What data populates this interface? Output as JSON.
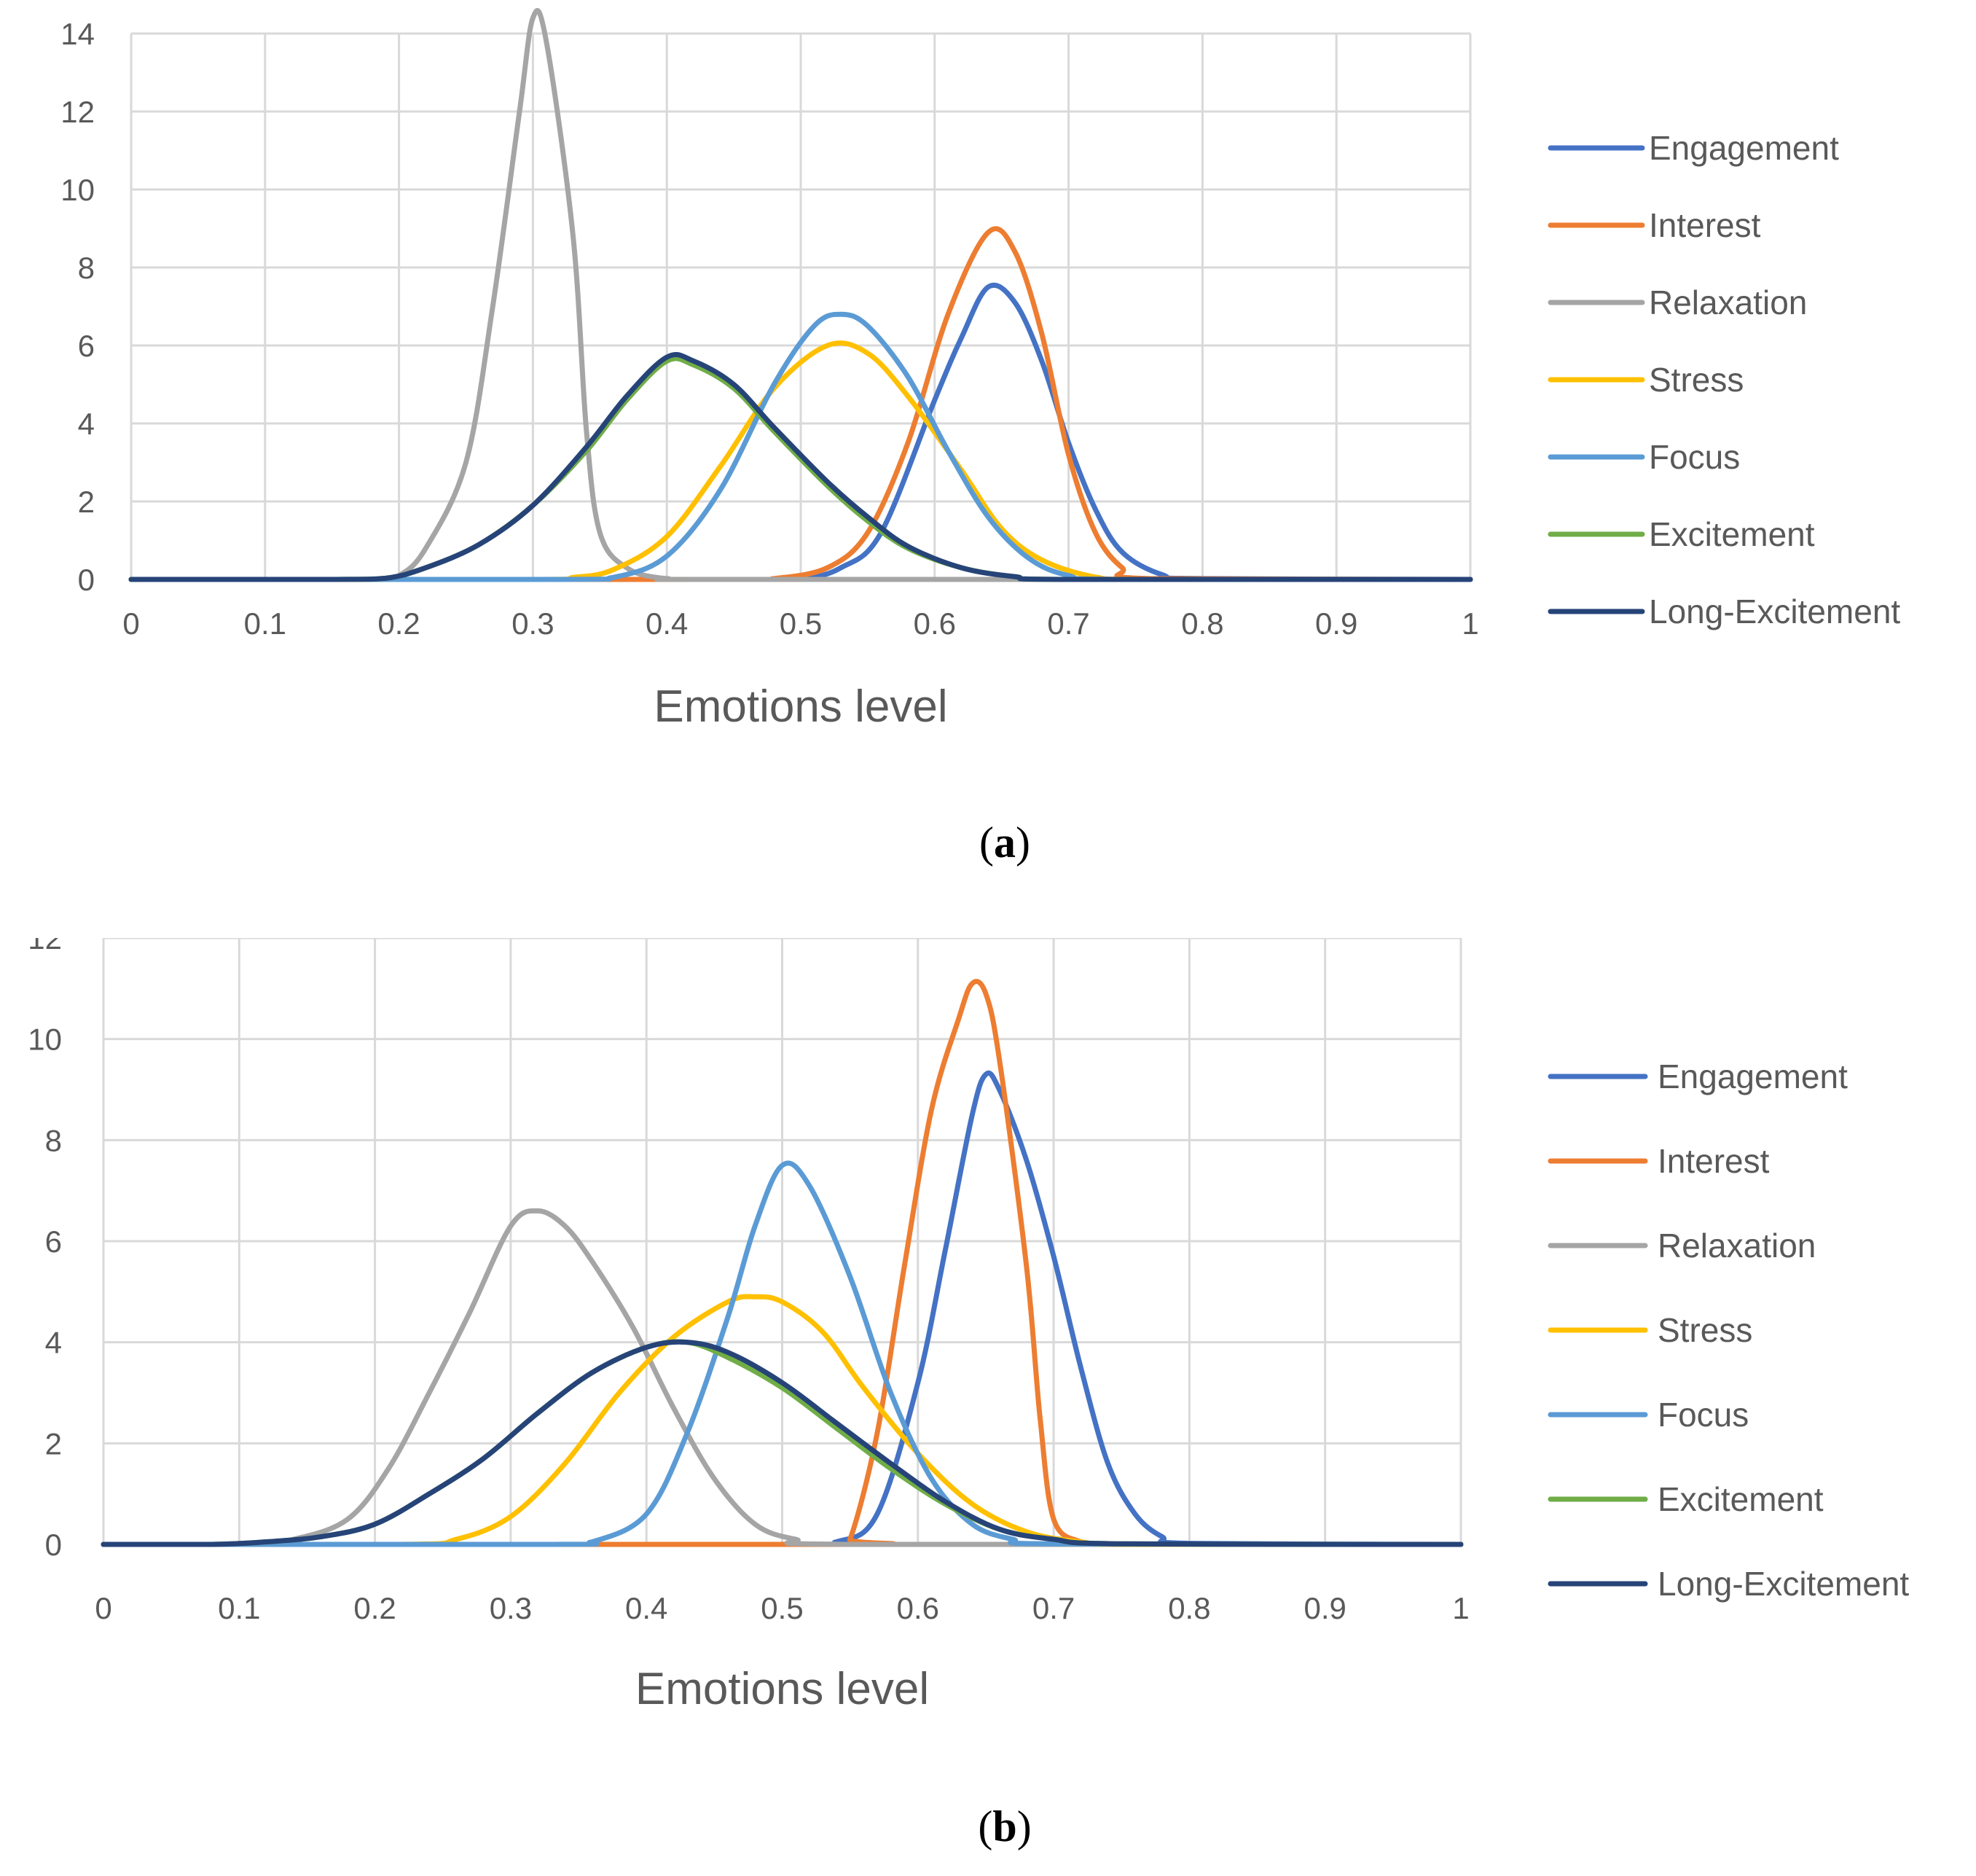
{
  "chart_data": [
    {
      "type": "line",
      "panel_label": "a",
      "title": "",
      "xlabel": "Emotions level",
      "ylabel": "",
      "xlim": [
        0,
        1
      ],
      "ylim": [
        0,
        14
      ],
      "x_ticks": [
        "0",
        "0.1",
        "0.2",
        "0.3",
        "0.4",
        "0.5",
        "0.6",
        "0.7",
        "0.8",
        "0.9",
        "1"
      ],
      "y_ticks": [
        "0",
        "2",
        "4",
        "6",
        "8",
        "10",
        "12",
        "14"
      ],
      "grid": true,
      "legend_position": "right",
      "series": [
        {
          "name": "Engagement",
          "color": "#4472C4",
          "points": [
            [
              0,
              0
            ],
            [
              0.45,
              0
            ],
            [
              0.5,
              0.02
            ],
            [
              0.53,
              0.3
            ],
            [
              0.56,
              1.2
            ],
            [
              0.6,
              4.6
            ],
            [
              0.62,
              6.2
            ],
            [
              0.64,
              7.5
            ],
            [
              0.66,
              7.1
            ],
            [
              0.68,
              5.6
            ],
            [
              0.7,
              3.5
            ],
            [
              0.72,
              1.8
            ],
            [
              0.74,
              0.7
            ],
            [
              0.77,
              0.12
            ],
            [
              0.8,
              0.02
            ],
            [
              1,
              0
            ]
          ]
        },
        {
          "name": "Interest",
          "color": "#ED7D31",
          "points": [
            [
              0,
              0
            ],
            [
              0.45,
              0
            ],
            [
              0.48,
              0.02
            ],
            [
              0.52,
              0.3
            ],
            [
              0.55,
              1.2
            ],
            [
              0.58,
              3.5
            ],
            [
              0.61,
              6.8
            ],
            [
              0.64,
              8.9
            ],
            [
              0.66,
              8.4
            ],
            [
              0.68,
              6.3
            ],
            [
              0.7,
              3.2
            ],
            [
              0.72,
              1.2
            ],
            [
              0.74,
              0.3
            ],
            [
              0.76,
              0.02
            ],
            [
              1,
              0
            ]
          ]
        },
        {
          "name": "Relaxation",
          "color": "#A5A5A5",
          "points": [
            [
              0,
              0
            ],
            [
              0.18,
              0
            ],
            [
              0.2,
              0.1
            ],
            [
              0.22,
              0.8
            ],
            [
              0.25,
              3.0
            ],
            [
              0.27,
              7.0
            ],
            [
              0.29,
              12.0
            ],
            [
              0.3,
              14.4
            ],
            [
              0.31,
              13.8
            ],
            [
              0.33,
              8.8
            ],
            [
              0.34,
              3.8
            ],
            [
              0.35,
              1.2
            ],
            [
              0.37,
              0.3
            ],
            [
              0.4,
              0.02
            ],
            [
              0.45,
              0
            ],
            [
              1,
              0
            ]
          ]
        },
        {
          "name": "Stress",
          "color": "#FFC000",
          "points": [
            [
              0,
              0
            ],
            [
              0.3,
              0
            ],
            [
              0.33,
              0.05
            ],
            [
              0.36,
              0.25
            ],
            [
              0.4,
              1.1
            ],
            [
              0.44,
              2.9
            ],
            [
              0.48,
              4.9
            ],
            [
              0.52,
              6.0
            ],
            [
              0.55,
              5.8
            ],
            [
              0.58,
              4.7
            ],
            [
              0.62,
              2.8
            ],
            [
              0.65,
              1.3
            ],
            [
              0.68,
              0.5
            ],
            [
              0.72,
              0.06
            ],
            [
              0.76,
              0
            ],
            [
              1,
              0
            ]
          ]
        },
        {
          "name": "Focus",
          "color": "#5B9BD5",
          "points": [
            [
              0,
              0
            ],
            [
              0.32,
              0
            ],
            [
              0.36,
              0.05
            ],
            [
              0.4,
              0.6
            ],
            [
              0.44,
              2.3
            ],
            [
              0.48,
              5.0
            ],
            [
              0.51,
              6.5
            ],
            [
              0.53,
              6.8
            ],
            [
              0.55,
              6.5
            ],
            [
              0.58,
              5.2
            ],
            [
              0.61,
              3.3
            ],
            [
              0.64,
              1.6
            ],
            [
              0.67,
              0.55
            ],
            [
              0.7,
              0.1
            ],
            [
              0.74,
              0
            ],
            [
              1,
              0
            ]
          ]
        },
        {
          "name": "Excitement",
          "color": "#70AD47",
          "points": [
            [
              0,
              0
            ],
            [
              0.15,
              0
            ],
            [
              0.19,
              0.03
            ],
            [
              0.22,
              0.3
            ],
            [
              0.26,
              0.9
            ],
            [
              0.3,
              1.9
            ],
            [
              0.34,
              3.3
            ],
            [
              0.37,
              4.6
            ],
            [
              0.4,
              5.6
            ],
            [
              0.42,
              5.5
            ],
            [
              0.45,
              4.9
            ],
            [
              0.48,
              3.8
            ],
            [
              0.52,
              2.4
            ],
            [
              0.55,
              1.5
            ],
            [
              0.58,
              0.8
            ],
            [
              0.62,
              0.3
            ],
            [
              0.66,
              0.07
            ],
            [
              0.7,
              0
            ],
            [
              1,
              0
            ]
          ]
        },
        {
          "name": "Long-Excitement",
          "color": "#264478",
          "points": [
            [
              0,
              0
            ],
            [
              0.15,
              0
            ],
            [
              0.19,
              0.03
            ],
            [
              0.22,
              0.3
            ],
            [
              0.26,
              0.9
            ],
            [
              0.3,
              1.9
            ],
            [
              0.34,
              3.4
            ],
            [
              0.37,
              4.7
            ],
            [
              0.4,
              5.7
            ],
            [
              0.42,
              5.6
            ],
            [
              0.45,
              5.0
            ],
            [
              0.48,
              3.9
            ],
            [
              0.52,
              2.5
            ],
            [
              0.55,
              1.6
            ],
            [
              0.58,
              0.85
            ],
            [
              0.62,
              0.3
            ],
            [
              0.66,
              0.07
            ],
            [
              0.7,
              0
            ],
            [
              1,
              0
            ]
          ]
        }
      ]
    },
    {
      "type": "line",
      "panel_label": "b",
      "title": "",
      "xlabel": "Emotions level",
      "ylabel": "",
      "xlim": [
        0,
        1
      ],
      "ylim": [
        0,
        12
      ],
      "x_ticks": [
        "0",
        "0.1",
        "0.2",
        "0.3",
        "0.4",
        "0.5",
        "0.6",
        "0.7",
        "0.8",
        "0.9",
        "1"
      ],
      "y_ticks": [
        "0",
        "2",
        "4",
        "6",
        "8",
        "10",
        "12"
      ],
      "grid": true,
      "legend_position": "right",
      "series": [
        {
          "name": "Engagement",
          "color": "#4472C4",
          "points": [
            [
              0,
              0
            ],
            [
              0.5,
              0
            ],
            [
              0.54,
              0.05
            ],
            [
              0.57,
              0.6
            ],
            [
              0.6,
              3.2
            ],
            [
              0.62,
              5.8
            ],
            [
              0.64,
              8.5
            ],
            [
              0.65,
              9.3
            ],
            [
              0.66,
              9.0
            ],
            [
              0.68,
              7.6
            ],
            [
              0.7,
              5.7
            ],
            [
              0.72,
              3.5
            ],
            [
              0.74,
              1.6
            ],
            [
              0.76,
              0.6
            ],
            [
              0.78,
              0.15
            ],
            [
              0.8,
              0.02
            ],
            [
              1,
              0
            ]
          ]
        },
        {
          "name": "Interest",
          "color": "#ED7D31",
          "points": [
            [
              0,
              0
            ],
            [
              0.54,
              0
            ],
            [
              0.55,
              0.1
            ],
            [
              0.57,
              2.2
            ],
            [
              0.59,
              5.5
            ],
            [
              0.61,
              8.6
            ],
            [
              0.63,
              10.4
            ],
            [
              0.64,
              11.1
            ],
            [
              0.65,
              10.9
            ],
            [
              0.66,
              9.6
            ],
            [
              0.68,
              5.5
            ],
            [
              0.69,
              2.5
            ],
            [
              0.7,
              0.5
            ],
            [
              0.72,
              0.05
            ],
            [
              0.74,
              0
            ],
            [
              1,
              0
            ]
          ]
        },
        {
          "name": "Relaxation",
          "color": "#A5A5A5",
          "points": [
            [
              0,
              0
            ],
            [
              0.1,
              0
            ],
            [
              0.14,
              0.1
            ],
            [
              0.18,
              0.5
            ],
            [
              0.21,
              1.5
            ],
            [
              0.24,
              3.0
            ],
            [
              0.27,
              4.6
            ],
            [
              0.3,
              6.3
            ],
            [
              0.32,
              6.6
            ],
            [
              0.34,
              6.3
            ],
            [
              0.36,
              5.6
            ],
            [
              0.39,
              4.3
            ],
            [
              0.42,
              2.7
            ],
            [
              0.45,
              1.3
            ],
            [
              0.48,
              0.4
            ],
            [
              0.51,
              0.1
            ],
            [
              0.55,
              0
            ],
            [
              1,
              0
            ]
          ]
        },
        {
          "name": "Stress",
          "color": "#FFC000",
          "points": [
            [
              0,
              0
            ],
            [
              0.22,
              0
            ],
            [
              0.26,
              0.1
            ],
            [
              0.3,
              0.55
            ],
            [
              0.34,
              1.6
            ],
            [
              0.38,
              3.0
            ],
            [
              0.42,
              4.1
            ],
            [
              0.46,
              4.8
            ],
            [
              0.48,
              4.9
            ],
            [
              0.5,
              4.8
            ],
            [
              0.53,
              4.2
            ],
            [
              0.56,
              3.1
            ],
            [
              0.6,
              1.8
            ],
            [
              0.64,
              0.8
            ],
            [
              0.68,
              0.25
            ],
            [
              0.72,
              0.05
            ],
            [
              0.76,
              0
            ],
            [
              1,
              0
            ]
          ]
        },
        {
          "name": "Focus",
          "color": "#5B9BD5",
          "points": [
            [
              0,
              0
            ],
            [
              0.33,
              0
            ],
            [
              0.36,
              0.05
            ],
            [
              0.4,
              0.6
            ],
            [
              0.43,
              2.2
            ],
            [
              0.46,
              4.5
            ],
            [
              0.48,
              6.3
            ],
            [
              0.5,
              7.5
            ],
            [
              0.52,
              7.1
            ],
            [
              0.55,
              5.3
            ],
            [
              0.58,
              3.0
            ],
            [
              0.61,
              1.3
            ],
            [
              0.64,
              0.4
            ],
            [
              0.67,
              0.1
            ],
            [
              0.7,
              0.01
            ],
            [
              1,
              0
            ]
          ]
        },
        {
          "name": "Excitement",
          "color": "#70AD47",
          "points": [
            [
              0,
              0
            ],
            [
              0.08,
              0
            ],
            [
              0.12,
              0.05
            ],
            [
              0.16,
              0.15
            ],
            [
              0.2,
              0.4
            ],
            [
              0.24,
              1.0
            ],
            [
              0.28,
              1.7
            ],
            [
              0.32,
              2.6
            ],
            [
              0.36,
              3.4
            ],
            [
              0.4,
              3.9
            ],
            [
              0.43,
              4.0
            ],
            [
              0.46,
              3.7
            ],
            [
              0.5,
              3.1
            ],
            [
              0.54,
              2.3
            ],
            [
              0.58,
              1.5
            ],
            [
              0.62,
              0.8
            ],
            [
              0.66,
              0.3
            ],
            [
              0.7,
              0.1
            ],
            [
              0.75,
              0.01
            ],
            [
              1,
              0
            ]
          ]
        },
        {
          "name": "Long-Excitement",
          "color": "#264478",
          "points": [
            [
              0,
              0
            ],
            [
              0.08,
              0
            ],
            [
              0.12,
              0.05
            ],
            [
              0.16,
              0.15
            ],
            [
              0.2,
              0.4
            ],
            [
              0.24,
              1.0
            ],
            [
              0.28,
              1.7
            ],
            [
              0.32,
              2.6
            ],
            [
              0.36,
              3.4
            ],
            [
              0.4,
              3.9
            ],
            [
              0.43,
              4.0
            ],
            [
              0.46,
              3.8
            ],
            [
              0.5,
              3.2
            ],
            [
              0.54,
              2.4
            ],
            [
              0.58,
              1.6
            ],
            [
              0.62,
              0.85
            ],
            [
              0.66,
              0.3
            ],
            [
              0.7,
              0.1
            ],
            [
              0.75,
              0.01
            ],
            [
              1,
              0
            ]
          ]
        }
      ]
    }
  ]
}
